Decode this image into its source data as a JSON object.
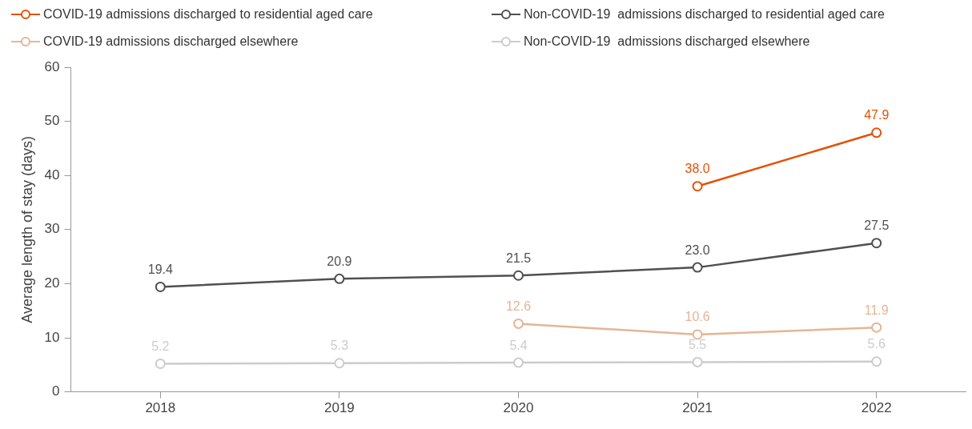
{
  "chart_data": {
    "type": "line",
    "ylabel": "Average length of stay (days)",
    "categories": [
      "2018",
      "2019",
      "2020",
      "2021",
      "2022"
    ],
    "ylim": [
      0,
      60
    ],
    "yticks": [
      0,
      10,
      20,
      30,
      40,
      50,
      60
    ],
    "legend": "top",
    "marker": "circle",
    "line_style": "solid",
    "series": [
      {
        "name": "COVID-19 admissions discharged to residential aged care",
        "color": "#e35205",
        "values": [
          null,
          null,
          null,
          38.0,
          47.9
        ],
        "value_labels": [
          null,
          null,
          null,
          "38.0",
          "47.9"
        ]
      },
      {
        "name": "Non-COVID-19  admissions discharged to residential aged care",
        "color": "#505050",
        "values": [
          19.4,
          20.9,
          21.5,
          23.0,
          27.5
        ],
        "value_labels": [
          "19.4",
          "20.9",
          "21.5",
          "23.0",
          "27.5"
        ]
      },
      {
        "name": "COVID-19 admissions discharged elsewhere",
        "color": "#e5b594",
        "values": [
          null,
          null,
          12.6,
          10.6,
          11.9
        ],
        "value_labels": [
          null,
          null,
          "12.6",
          "10.6",
          "11.9"
        ]
      },
      {
        "name": "Non-COVID-19  admissions discharged elsewhere",
        "color": "#cccccc",
        "values": [
          5.2,
          5.3,
          5.4,
          5.5,
          5.6
        ],
        "value_labels": [
          "5.2",
          "5.3",
          "5.4",
          "5.5",
          "5.6"
        ]
      }
    ]
  }
}
